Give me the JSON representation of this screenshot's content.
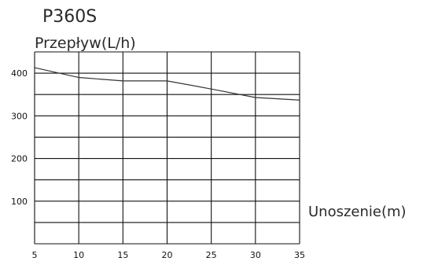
{
  "chart_data": {
    "type": "line",
    "title": "P360S",
    "ylabel": "Przepływ(L/h)",
    "xlabel": "Unoszenie(m)",
    "xlim": [
      5,
      35
    ],
    "ylim": [
      0,
      450
    ],
    "x_ticks": [
      "5",
      "10",
      "15",
      "20",
      "25",
      "30",
      "35"
    ],
    "y_ticks": [
      "100",
      "200",
      "300",
      "400"
    ],
    "grid": true,
    "series": [
      {
        "x": [
          5,
          10,
          15,
          20,
          25,
          30,
          35
        ],
        "values": [
          413,
          390,
          382,
          382,
          363,
          343,
          337
        ]
      }
    ]
  }
}
